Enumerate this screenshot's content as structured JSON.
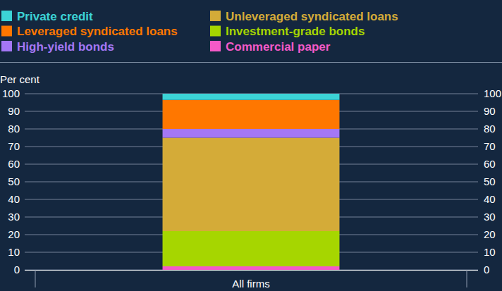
{
  "chart_data": {
    "type": "bar",
    "stacked": true,
    "grid": true,
    "legend": "top",
    "y_label": "Per cent",
    "categories": [
      "All firms"
    ],
    "ylim": [
      0,
      100
    ],
    "yticks": [
      0,
      10,
      20,
      30,
      40,
      50,
      60,
      70,
      80,
      90,
      100
    ],
    "series": [
      {
        "name": "Private credit",
        "color": "#3cd3d6",
        "values": [
          3.5
        ]
      },
      {
        "name": "Leveraged syndicated loans",
        "color": "#ff7700",
        "values": [
          16.5
        ]
      },
      {
        "name": "High-yield bonds",
        "color": "#a477f5",
        "values": [
          5
        ]
      },
      {
        "name": "Unleveraged syndicated loans",
        "color": "#d4ab38",
        "values": [
          53
        ]
      },
      {
        "name": "Investment-grade bonds",
        "color": "#a6d600",
        "values": [
          20
        ]
      },
      {
        "name": "Commercial paper",
        "color": "#f55ac8",
        "values": [
          2
        ]
      }
    ]
  }
}
